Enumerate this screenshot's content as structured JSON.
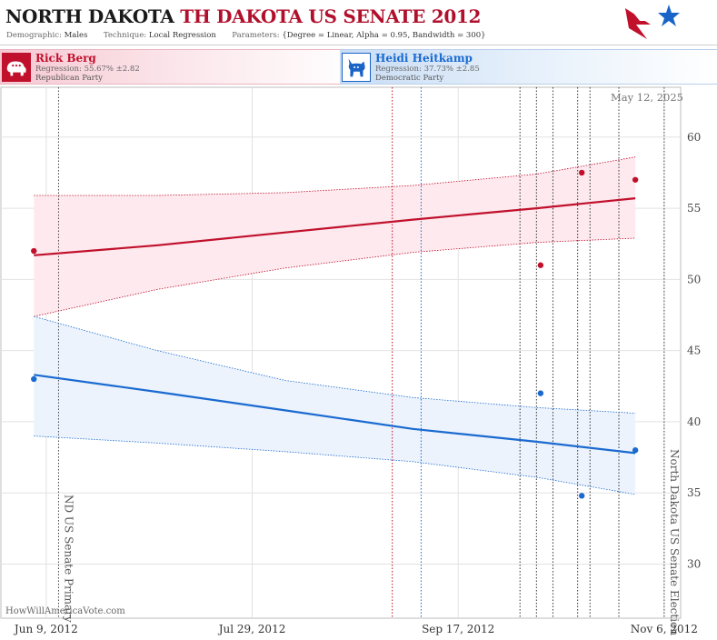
{
  "header": {
    "title_state": "NORTH DAKOTA",
    "title_race": "TH DAKOTA US SENATE 2012",
    "demographic_label": "Demographic:",
    "demographic_value": "Males",
    "technique_label": "Technique:",
    "technique_value": "Local Regression",
    "parameters_label": "Parameters:",
    "parameters_value": "{Degree = Linear, Alpha = 0.95, Bandwidth = 300}"
  },
  "candidates": [
    {
      "name": "Rick Berg",
      "regression": "Regression: 55.67% ±2.82",
      "party": "Republican Party",
      "icon": "elephant-icon"
    },
    {
      "name": "Heidi Heitkamp",
      "regression": "Regression: 37.73% ±2.85",
      "party": "Democratic Party",
      "icon": "donkey-icon"
    }
  ],
  "date_stamp": "May 12, 2025",
  "watermark": "HowWillAmericaVote.com",
  "colors": {
    "republican": "#c0102c",
    "democrat": "#1a6ad0",
    "republican_band": "#fde9ee",
    "democrat_band": "#ecf3fc",
    "grid": "#e2e2e2"
  },
  "chart_data": {
    "type": "scatter",
    "title": "",
    "xlabel": "",
    "ylabel": "",
    "x_ticks": [
      "Jun 9, 2012",
      "Jul 29, 2012",
      "Sep 17, 2012",
      "Nov 6, 2012"
    ],
    "xlim": [
      "2012-05-29",
      "2012-11-10"
    ],
    "ylim": [
      26.2,
      63.5
    ],
    "y_ticks": [
      30,
      35,
      40,
      45,
      50,
      55,
      60
    ],
    "grid": true,
    "y_axis_side": "right",
    "events": [
      {
        "date": "2012-06-12",
        "label": "ND US Senate Primary"
      },
      {
        "date": "2012-11-06",
        "label": "North Dakota US Senate Election"
      }
    ],
    "poll_lines": [
      {
        "date": "2012-09-01",
        "color": "#c0102c"
      },
      {
        "date": "2012-09-08",
        "color": "#1a6ad0"
      },
      {
        "date": "2012-10-02"
      },
      {
        "date": "2012-10-06"
      },
      {
        "date": "2012-10-10"
      },
      {
        "date": "2012-10-16"
      },
      {
        "date": "2012-10-19"
      },
      {
        "date": "2012-10-26"
      }
    ],
    "series": [
      {
        "name": "Rick Berg",
        "color": "#c0102c",
        "points": [
          {
            "x": "2012-06-06",
            "y": 52.0
          },
          {
            "x": "2012-10-07",
            "y": 51.0
          },
          {
            "x": "2012-10-17",
            "y": 57.5
          },
          {
            "x": "2012-10-30",
            "y": 57.0
          }
        ],
        "trend": [
          {
            "x": "2012-06-06",
            "y": 51.7
          },
          {
            "x": "2012-07-06",
            "y": 52.4
          },
          {
            "x": "2012-08-06",
            "y": 53.3
          },
          {
            "x": "2012-09-06",
            "y": 54.2
          },
          {
            "x": "2012-10-06",
            "y": 55.0
          },
          {
            "x": "2012-10-30",
            "y": 55.7
          }
        ],
        "upper": [
          {
            "x": "2012-06-06",
            "y": 55.9
          },
          {
            "x": "2012-07-06",
            "y": 55.9
          },
          {
            "x": "2012-08-06",
            "y": 56.1
          },
          {
            "x": "2012-09-06",
            "y": 56.6
          },
          {
            "x": "2012-10-06",
            "y": 57.4
          },
          {
            "x": "2012-10-30",
            "y": 58.6
          }
        ],
        "lower": [
          {
            "x": "2012-06-06",
            "y": 47.4
          },
          {
            "x": "2012-07-06",
            "y": 49.3
          },
          {
            "x": "2012-08-06",
            "y": 50.8
          },
          {
            "x": "2012-09-06",
            "y": 51.9
          },
          {
            "x": "2012-10-06",
            "y": 52.6
          },
          {
            "x": "2012-10-30",
            "y": 52.9
          }
        ]
      },
      {
        "name": "Heidi Heitkamp",
        "color": "#1a6ad0",
        "points": [
          {
            "x": "2012-06-06",
            "y": 43.0
          },
          {
            "x": "2012-10-07",
            "y": 42.0
          },
          {
            "x": "2012-10-17",
            "y": 34.8
          },
          {
            "x": "2012-10-30",
            "y": 38.0
          }
        ],
        "trend": [
          {
            "x": "2012-06-06",
            "y": 43.3
          },
          {
            "x": "2012-07-06",
            "y": 42.1
          },
          {
            "x": "2012-08-06",
            "y": 40.8
          },
          {
            "x": "2012-09-06",
            "y": 39.5
          },
          {
            "x": "2012-10-06",
            "y": 38.6
          },
          {
            "x": "2012-10-30",
            "y": 37.8
          }
        ],
        "upper": [
          {
            "x": "2012-06-06",
            "y": 47.4
          },
          {
            "x": "2012-07-06",
            "y": 45.0
          },
          {
            "x": "2012-08-06",
            "y": 42.9
          },
          {
            "x": "2012-09-06",
            "y": 41.7
          },
          {
            "x": "2012-10-06",
            "y": 41.0
          },
          {
            "x": "2012-10-30",
            "y": 40.6
          }
        ],
        "lower": [
          {
            "x": "2012-06-06",
            "y": 39.0
          },
          {
            "x": "2012-07-06",
            "y": 38.5
          },
          {
            "x": "2012-08-06",
            "y": 37.9
          },
          {
            "x": "2012-09-06",
            "y": 37.2
          },
          {
            "x": "2012-10-06",
            "y": 36.1
          },
          {
            "x": "2012-10-30",
            "y": 34.9
          }
        ]
      }
    ]
  }
}
